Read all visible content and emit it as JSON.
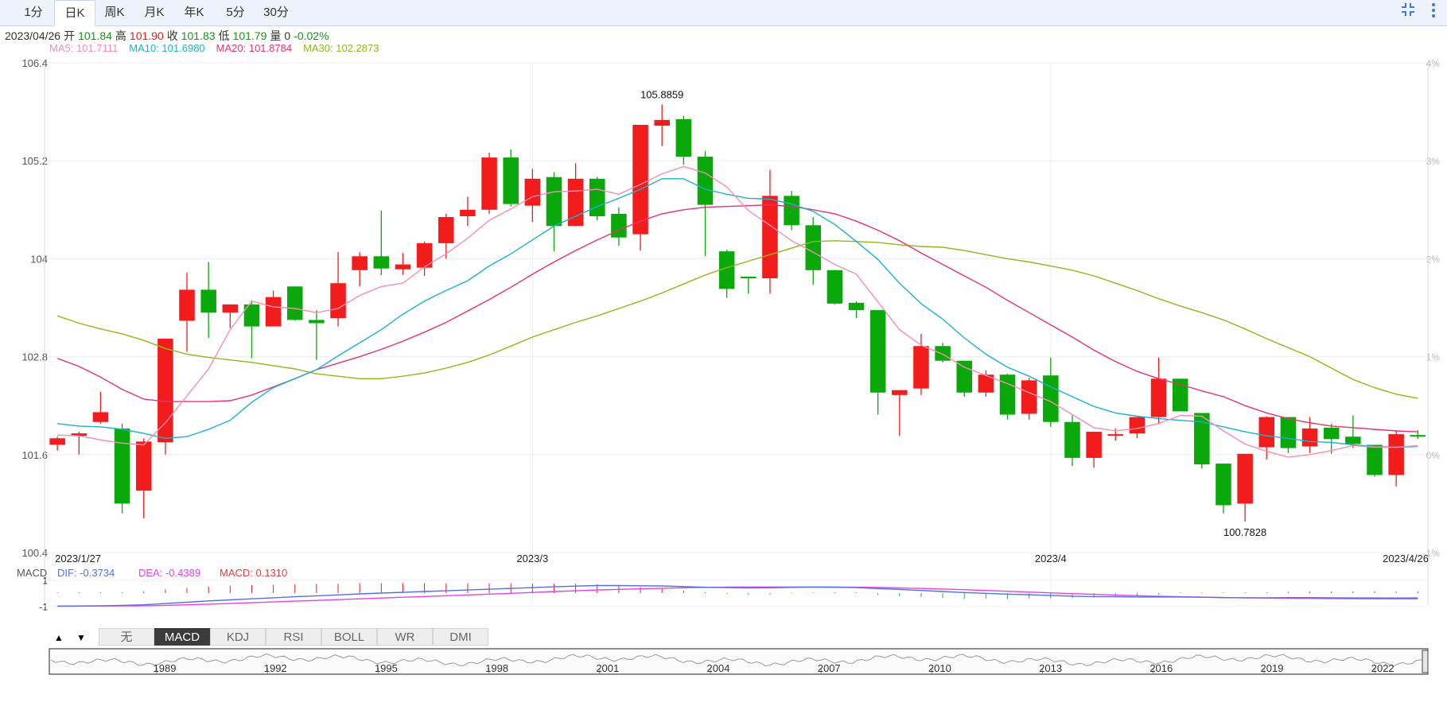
{
  "tabs": [
    "1分",
    "日K",
    "周K",
    "月K",
    "年K",
    "5分",
    "30分"
  ],
  "active_tab": "日K",
  "icons": [
    "compress-icon",
    "more-vertical-icon"
  ],
  "colors": {
    "up": "#f31c1c",
    "down": "#0aa80a",
    "ma5": "#f38fb3",
    "ma10": "#1bb2cf",
    "ma20": "#e8336b",
    "ma30": "#8fb81a",
    "dif": "#5470e6",
    "dea": "#e640e6",
    "macd_label": "#d94040"
  },
  "ohlc_info": {
    "date": "2023/04/26",
    "open_label": "开",
    "open": "101.84",
    "high_label": "高",
    "high": "101.90",
    "close_label": "收",
    "close": "101.83",
    "low_label": "低",
    "low": "101.79",
    "vol_label": "量",
    "vol": "0",
    "change": "-0.02%"
  },
  "ma_info": {
    "ma5": "MA5: 101.7111",
    "ma10": "MA10: 101.6980",
    "ma20": "MA20: 101.8784",
    "ma30": "MA30: 102.2873"
  },
  "macd_info": {
    "label": "MACD",
    "dif": "DIF: -0.3734",
    "dea": "DEA: -0.4389",
    "macd": "MACD: 0.1310"
  },
  "indicator_tabs": [
    "无",
    "MACD",
    "KDJ",
    "RSI",
    "BOLL",
    "WR",
    "DMI"
  ],
  "active_indicator": "MACD",
  "navigator_labels": [
    "1989",
    "1992",
    "1995",
    "1998",
    "2001",
    "2004",
    "2007",
    "2010",
    "2013",
    "2016",
    "2019",
    "2022"
  ],
  "chart_data": {
    "type": "candlestick",
    "y_ticks": [
      "106.4",
      "105.2",
      "104",
      "102.8",
      "101.6",
      "100.4"
    ],
    "ylim": [
      100.4,
      106.4
    ],
    "pct_ticks": [
      "4%",
      "3%",
      "2%",
      "1%",
      "0%",
      "-1%"
    ],
    "x_labels": [
      "2023/1/27",
      "2023/3",
      "2023/4",
      "2023/4/26"
    ],
    "max_label": "105.8859",
    "min_label": "100.7828",
    "macd_ticks": [
      "1",
      "-1"
    ],
    "candles": [
      [
        101.72,
        101.8,
        101.65,
        101.82
      ],
      [
        101.83,
        101.86,
        101.6,
        101.88
      ],
      [
        102.0,
        102.12,
        101.98,
        102.37
      ],
      [
        101.92,
        101.0,
        100.88,
        101.98
      ],
      [
        101.16,
        101.76,
        100.82,
        101.8
      ],
      [
        101.75,
        103.02,
        101.6,
        103.02
      ],
      [
        103.24,
        103.62,
        102.86,
        103.83
      ],
      [
        103.62,
        103.34,
        103.03,
        103.96
      ],
      [
        103.34,
        103.44,
        103.15,
        103.44
      ],
      [
        103.44,
        103.17,
        102.78,
        103.49
      ],
      [
        103.17,
        103.53,
        103.17,
        103.61
      ],
      [
        103.66,
        103.25,
        103.24,
        103.66
      ],
      [
        103.25,
        103.21,
        102.76,
        103.37
      ],
      [
        103.27,
        103.7,
        103.17,
        104.08
      ],
      [
        103.86,
        104.03,
        103.66,
        104.08
      ],
      [
        104.03,
        103.88,
        103.8,
        104.59
      ],
      [
        103.87,
        103.93,
        103.8,
        104.07
      ],
      [
        103.89,
        104.19,
        103.79,
        104.21
      ],
      [
        104.19,
        104.51,
        104.0,
        104.55
      ],
      [
        104.52,
        104.6,
        104.4,
        104.76
      ],
      [
        104.6,
        105.24,
        104.55,
        105.3
      ],
      [
        105.24,
        104.67,
        104.64,
        105.34
      ],
      [
        104.65,
        104.98,
        104.45,
        105.1
      ],
      [
        105.0,
        104.4,
        104.09,
        105.06
      ],
      [
        104.4,
        104.98,
        104.4,
        105.17
      ],
      [
        104.98,
        104.52,
        104.47,
        105.0
      ],
      [
        104.55,
        104.26,
        104.16,
        104.63
      ],
      [
        104.3,
        105.64,
        104.1,
        105.64
      ],
      [
        105.63,
        105.7,
        105.38,
        105.89
      ],
      [
        105.71,
        105.25,
        105.15,
        105.75
      ],
      [
        105.25,
        104.66,
        104.03,
        105.32
      ],
      [
        104.09,
        103.63,
        103.52,
        104.11
      ],
      [
        103.78,
        103.76,
        103.57,
        103.78
      ],
      [
        103.76,
        104.77,
        103.57,
        105.09
      ],
      [
        104.77,
        104.41,
        104.35,
        104.83
      ],
      [
        104.41,
        103.86,
        103.68,
        104.51
      ],
      [
        103.86,
        103.45,
        103.44,
        103.86
      ],
      [
        103.46,
        103.37,
        103.27,
        103.48
      ],
      [
        103.37,
        102.36,
        102.09,
        103.37
      ],
      [
        102.33,
        102.39,
        101.83,
        102.36
      ],
      [
        102.41,
        102.93,
        102.33,
        103.08
      ],
      [
        102.93,
        102.75,
        102.73,
        102.97
      ],
      [
        102.75,
        102.36,
        102.31,
        102.75
      ],
      [
        102.36,
        102.58,
        102.31,
        102.63
      ],
      [
        102.58,
        102.09,
        102.03,
        102.59
      ],
      [
        102.1,
        102.51,
        102.03,
        102.54
      ],
      [
        102.57,
        102.0,
        101.94,
        102.79
      ],
      [
        102.0,
        101.56,
        101.46,
        102.08
      ],
      [
        101.56,
        101.88,
        101.44,
        101.88
      ],
      [
        101.83,
        101.85,
        101.77,
        101.92
      ],
      [
        101.86,
        102.06,
        101.8,
        102.06
      ],
      [
        102.06,
        102.53,
        101.97,
        102.79
      ],
      [
        102.53,
        102.13,
        102.13,
        102.53
      ],
      [
        102.11,
        101.48,
        101.43,
        102.11
      ],
      [
        101.49,
        100.98,
        100.88,
        101.49
      ],
      [
        101.0,
        101.61,
        100.78,
        101.61
      ],
      [
        101.69,
        102.06,
        101.54,
        102.07
      ],
      [
        102.06,
        101.68,
        101.62,
        102.06
      ],
      [
        101.7,
        101.92,
        101.62,
        102.06
      ],
      [
        101.93,
        101.79,
        101.61,
        101.98
      ],
      [
        101.82,
        101.73,
        101.68,
        102.08
      ],
      [
        101.72,
        101.35,
        101.33,
        101.72
      ],
      [
        101.35,
        101.85,
        101.21,
        101.9
      ],
      [
        101.84,
        101.83,
        101.79,
        101.9
      ]
    ],
    "series": [
      {
        "name": "MA5",
        "values": [
          101.84,
          101.83,
          101.78,
          101.74,
          101.72,
          101.99,
          102.32,
          102.65,
          103.13,
          103.48,
          103.41,
          103.39,
          103.34,
          103.39,
          103.55,
          103.66,
          103.7,
          103.9,
          104.06,
          104.25,
          104.47,
          104.61,
          104.76,
          104.82,
          104.83,
          104.85,
          104.79,
          104.91,
          105.04,
          105.13,
          105.05,
          104.88,
          104.59,
          104.41,
          104.22,
          104.08,
          103.93,
          103.81,
          103.47,
          103.13,
          102.94,
          102.83,
          102.67,
          102.57,
          102.47,
          102.36,
          102.25,
          102.09,
          101.93,
          101.89,
          101.92,
          101.98,
          102.08,
          102.07,
          101.89,
          101.73,
          101.64,
          101.57,
          101.6,
          101.65,
          101.71,
          101.69,
          101.69,
          101.71
        ]
      },
      {
        "name": "MA10",
        "values": [
          101.98,
          101.95,
          101.94,
          101.91,
          101.86,
          101.8,
          101.82,
          101.91,
          102.02,
          102.24,
          102.42,
          102.53,
          102.64,
          102.81,
          102.97,
          103.13,
          103.32,
          103.48,
          103.61,
          103.73,
          103.91,
          104.06,
          104.23,
          104.4,
          104.52,
          104.64,
          104.74,
          104.85,
          104.98,
          104.98,
          104.85,
          104.79,
          104.74,
          104.73,
          104.67,
          104.58,
          104.42,
          104.21,
          103.99,
          103.7,
          103.45,
          103.26,
          103.03,
          102.83,
          102.67,
          102.56,
          102.43,
          102.31,
          102.19,
          102.11,
          102.07,
          102.04,
          102.02,
          102.0,
          101.94,
          101.88,
          101.83,
          101.8,
          101.76,
          101.75,
          101.72,
          101.7,
          101.69,
          101.7
        ]
      },
      {
        "name": "MA20",
        "values": [
          102.78,
          102.68,
          102.55,
          102.4,
          102.28,
          102.25,
          102.25,
          102.25,
          102.26,
          102.33,
          102.43,
          102.53,
          102.64,
          102.72,
          102.8,
          102.89,
          102.99,
          103.1,
          103.22,
          103.36,
          103.5,
          103.65,
          103.81,
          103.96,
          104.1,
          104.23,
          104.35,
          104.46,
          104.55,
          104.6,
          104.63,
          104.64,
          104.65,
          104.66,
          104.64,
          104.6,
          104.55,
          104.46,
          104.35,
          104.22,
          104.07,
          103.93,
          103.79,
          103.65,
          103.49,
          103.34,
          103.19,
          103.04,
          102.88,
          102.74,
          102.62,
          102.53,
          102.46,
          102.38,
          102.31,
          102.2,
          102.11,
          102.04,
          101.99,
          101.95,
          101.93,
          101.91,
          101.89,
          101.88
        ]
      },
      {
        "name": "MA30",
        "values": [
          103.3,
          103.21,
          103.14,
          103.08,
          103.0,
          102.9,
          102.83,
          102.79,
          102.76,
          102.73,
          102.69,
          102.65,
          102.59,
          102.56,
          102.53,
          102.53,
          102.56,
          102.6,
          102.66,
          102.73,
          102.82,
          102.93,
          103.04,
          103.13,
          103.22,
          103.3,
          103.39,
          103.48,
          103.58,
          103.69,
          103.8,
          103.89,
          103.97,
          104.05,
          104.13,
          104.21,
          104.22,
          104.21,
          104.2,
          104.17,
          104.15,
          104.14,
          104.1,
          104.05,
          104.0,
          103.96,
          103.91,
          103.86,
          103.79,
          103.7,
          103.61,
          103.51,
          103.42,
          103.34,
          103.25,
          103.14,
          103.02,
          102.91,
          102.8,
          102.66,
          102.52,
          102.42,
          102.34,
          102.29
        ]
      },
      {
        "name": "DIF",
        "values": [
          -1.0,
          -0.99,
          -0.97,
          -0.95,
          -0.9,
          -0.8,
          -0.7,
          -0.6,
          -0.52,
          -0.44,
          -0.36,
          -0.28,
          -0.21,
          -0.14,
          -0.06,
          0.0,
          0.06,
          0.12,
          0.18,
          0.24,
          0.3,
          0.36,
          0.42,
          0.48,
          0.54,
          0.58,
          0.58,
          0.56,
          0.55,
          0.5,
          0.45,
          0.42,
          0.4,
          0.41,
          0.44,
          0.46,
          0.46,
          0.42,
          0.35,
          0.28,
          0.2,
          0.12,
          0.04,
          -0.02,
          -0.08,
          -0.13,
          -0.18,
          -0.24,
          -0.27,
          -0.28,
          -0.3,
          -0.3,
          -0.3,
          -0.32,
          -0.35,
          -0.36,
          -0.36,
          -0.35,
          -0.35,
          -0.36,
          -0.37,
          -0.37,
          -0.38,
          -0.37
        ]
      },
      {
        "name": "DEA",
        "values": [
          -1.0,
          -1.0,
          -0.99,
          -0.98,
          -0.97,
          -0.94,
          -0.9,
          -0.85,
          -0.8,
          -0.74,
          -0.68,
          -0.62,
          -0.56,
          -0.5,
          -0.44,
          -0.38,
          -0.32,
          -0.26,
          -0.2,
          -0.14,
          -0.08,
          -0.02,
          0.05,
          0.12,
          0.18,
          0.24,
          0.29,
          0.33,
          0.37,
          0.41,
          0.44,
          0.46,
          0.47,
          0.47,
          0.47,
          0.47,
          0.46,
          0.45,
          0.43,
          0.4,
          0.36,
          0.31,
          0.26,
          0.2,
          0.14,
          0.08,
          0.02,
          -0.04,
          -0.1,
          -0.15,
          -0.2,
          -0.24,
          -0.28,
          -0.31,
          -0.34,
          -0.36,
          -0.38,
          -0.4,
          -0.41,
          -0.42,
          -0.43,
          -0.44,
          -0.44,
          -0.44
        ]
      },
      {
        "name": "MACD",
        "values": [
          0.0,
          0.02,
          0.04,
          0.06,
          0.14,
          0.28,
          0.4,
          0.5,
          0.56,
          0.6,
          0.64,
          0.68,
          0.7,
          0.72,
          0.76,
          0.76,
          0.76,
          0.76,
          0.76,
          0.76,
          0.76,
          0.76,
          0.74,
          0.72,
          0.72,
          0.68,
          0.58,
          0.46,
          0.36,
          0.18,
          0.02,
          -0.08,
          -0.14,
          -0.12,
          -0.06,
          -0.02,
          0.0,
          -0.06,
          -0.16,
          -0.24,
          -0.32,
          -0.38,
          -0.44,
          -0.44,
          -0.44,
          -0.42,
          -0.4,
          -0.4,
          -0.34,
          -0.26,
          -0.2,
          -0.12,
          -0.04,
          -0.02,
          -0.02,
          0.0,
          0.04,
          0.1,
          0.12,
          0.12,
          0.12,
          0.14,
          0.12,
          0.13
        ]
      }
    ]
  }
}
